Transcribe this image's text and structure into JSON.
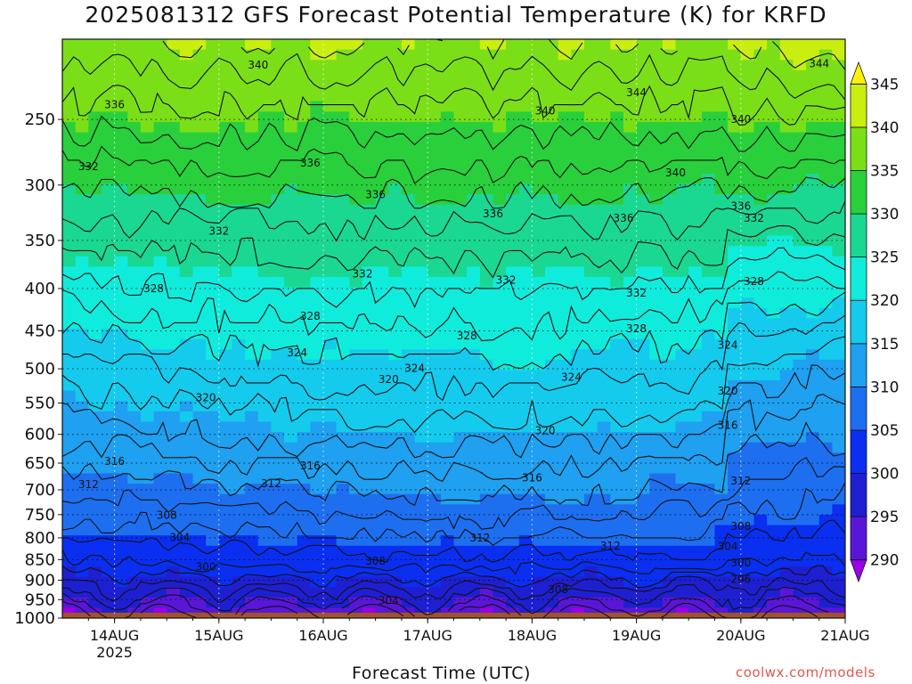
{
  "title": "2025081312 GFS Forecast Potential Temperature (K) for KRFD",
  "watermark": "coolwx.com/models",
  "chart_data": {
    "type": "heatmap",
    "title": "2025081312 GFS Forecast Potential Temperature (K) for KRFD",
    "xlabel": "Forecast Time (UTC)",
    "ylabel": "",
    "x_ticks": [
      "14AUG",
      "15AUG",
      "16AUG",
      "17AUG",
      "18AUG",
      "19AUG",
      "20AUG",
      "21AUG"
    ],
    "x_year_label": "2025",
    "x_range": [
      "2025-08-13 12Z",
      "2025-08-21 00Z"
    ],
    "y_ticks": [
      250,
      300,
      350,
      400,
      450,
      500,
      550,
      600,
      650,
      700,
      750,
      800,
      850,
      900,
      950,
      1000
    ],
    "y_range_hPa": [
      1000,
      200
    ],
    "y_scale": "log-pressure",
    "grid": true,
    "colorbar": {
      "levels": [
        290,
        295,
        300,
        305,
        310,
        315,
        320,
        325,
        330,
        335,
        340,
        345
      ],
      "labels": [
        "290",
        "295",
        "300",
        "305",
        "310",
        "315",
        "320",
        "325",
        "330",
        "335",
        "340",
        "345"
      ],
      "colors": [
        "#9b00e8",
        "#5a16d8",
        "#1f1fd2",
        "#0a2ff0",
        "#1d6ff0",
        "#1fa0f0",
        "#14cbee",
        "#10ecdc",
        "#1ad891",
        "#29d03c",
        "#7bdf18",
        "#c9ee10",
        "#fff20a"
      ],
      "placement": "right"
    },
    "contour_interval": 2,
    "contour_labels": [
      {
        "value": "340",
        "time": "2025-08-15 09Z",
        "p": 215
      },
      {
        "value": "344",
        "time": "2025-08-19 00Z",
        "p": 232
      },
      {
        "value": "344",
        "time": "2025-08-20 18Z",
        "p": 214
      },
      {
        "value": "340",
        "time": "2025-08-18 03Z",
        "p": 244
      },
      {
        "value": "340",
        "time": "2025-08-20 00Z",
        "p": 250
      },
      {
        "value": "336",
        "time": "2025-08-14 00Z",
        "p": 240
      },
      {
        "value": "336",
        "time": "2025-08-15 21Z",
        "p": 282
      },
      {
        "value": "340",
        "time": "2025-08-19 09Z",
        "p": 290
      },
      {
        "value": "336",
        "time": "2025-08-16 12Z",
        "p": 308
      },
      {
        "value": "336",
        "time": "2025-08-17 15Z",
        "p": 325
      },
      {
        "value": "336",
        "time": "2025-08-18 21Z",
        "p": 329
      },
      {
        "value": "336",
        "time": "2025-08-20 00Z",
        "p": 318
      },
      {
        "value": "332",
        "time": "2025-08-20 03Z",
        "p": 329
      },
      {
        "value": "332",
        "time": "2025-08-13 18Z",
        "p": 285
      },
      {
        "value": "332",
        "time": "2025-08-15 00Z",
        "p": 341
      },
      {
        "value": "332",
        "time": "2025-08-16 09Z",
        "p": 384
      },
      {
        "value": "332",
        "time": "2025-08-17 18Z",
        "p": 391
      },
      {
        "value": "332",
        "time": "2025-08-19 00Z",
        "p": 405
      },
      {
        "value": "328",
        "time": "2025-08-14 09Z",
        "p": 400
      },
      {
        "value": "328",
        "time": "2025-08-20 03Z",
        "p": 392
      },
      {
        "value": "328",
        "time": "2025-08-15 21Z",
        "p": 432
      },
      {
        "value": "328",
        "time": "2025-08-17 09Z",
        "p": 456
      },
      {
        "value": "328",
        "time": "2025-08-19 00Z",
        "p": 447
      },
      {
        "value": "324",
        "time": "2025-08-15 18Z",
        "p": 478
      },
      {
        "value": "324",
        "time": "2025-08-16 21Z",
        "p": 499
      },
      {
        "value": "324",
        "time": "2025-08-18 09Z",
        "p": 512
      },
      {
        "value": "324",
        "time": "2025-08-19 21Z",
        "p": 468
      },
      {
        "value": "320",
        "time": "2025-08-14 21Z",
        "p": 542
      },
      {
        "value": "320",
        "time": "2025-08-16 15Z",
        "p": 515
      },
      {
        "value": "320",
        "time": "2025-08-18 03Z",
        "p": 594
      },
      {
        "value": "320",
        "time": "2025-08-19 21Z",
        "p": 532
      },
      {
        "value": "316",
        "time": "2025-08-14 00Z",
        "p": 647
      },
      {
        "value": "316",
        "time": "2025-08-15 21Z",
        "p": 655
      },
      {
        "value": "316",
        "time": "2025-08-18 00Z",
        "p": 677
      },
      {
        "value": "316",
        "time": "2025-08-19 21Z",
        "p": 585
      },
      {
        "value": "312",
        "time": "2025-08-13 18Z",
        "p": 690
      },
      {
        "value": "312",
        "time": "2025-08-15 12Z",
        "p": 688
      },
      {
        "value": "312",
        "time": "2025-08-17 12Z",
        "p": 800
      },
      {
        "value": "312",
        "time": "2025-08-18 18Z",
        "p": 818
      },
      {
        "value": "312",
        "time": "2025-08-20 00Z",
        "p": 683
      },
      {
        "value": "308",
        "time": "2025-08-14 12Z",
        "p": 751
      },
      {
        "value": "308",
        "time": "2025-08-16 12Z",
        "p": 853
      },
      {
        "value": "308",
        "time": "2025-08-18 06Z",
        "p": 924
      },
      {
        "value": "308",
        "time": "2025-08-20 00Z",
        "p": 775
      },
      {
        "value": "304",
        "time": "2025-08-14 15Z",
        "p": 799
      },
      {
        "value": "304",
        "time": "2025-08-16 15Z",
        "p": 953
      },
      {
        "value": "304",
        "time": "2025-08-19 21Z",
        "p": 819
      },
      {
        "value": "300",
        "time": "2025-08-14 21Z",
        "p": 867
      },
      {
        "value": "300",
        "time": "2025-08-20 00Z",
        "p": 858
      },
      {
        "value": "296",
        "time": "2025-08-20 00Z",
        "p": 898
      }
    ]
  }
}
